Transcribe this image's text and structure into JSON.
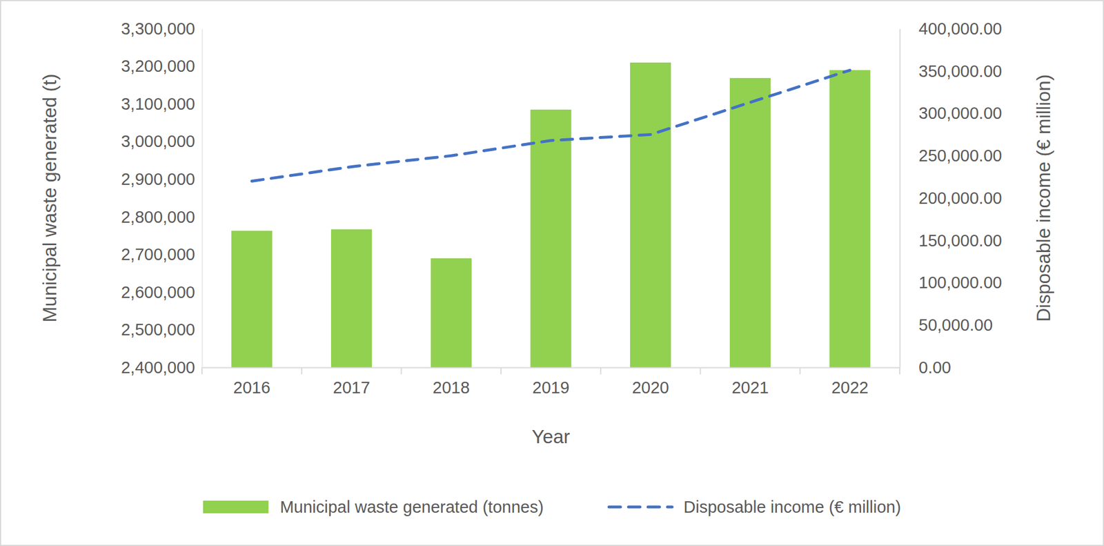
{
  "chart_data": {
    "type": "bar",
    "xlabel": "Year",
    "ylabel": "Municipal waste generated (t)",
    "y2label": "Disposable income (€ million)",
    "categories": [
      "2016",
      "2017",
      "2018",
      "2019",
      "2020",
      "2021",
      "2022"
    ],
    "series": [
      {
        "name": "Municipal waste generated (tonnes)",
        "type": "bar",
        "color": "#92d050",
        "values": [
          2763000,
          2767000,
          2690000,
          3085000,
          3210000,
          3169000,
          3190000
        ]
      },
      {
        "name": "Disposable income (€ million)",
        "type": "line",
        "color": "#4472c4",
        "line_style": "dashed",
        "axis": "y2",
        "values": [
          220000,
          237000,
          250000,
          268000,
          275000,
          313000,
          351000
        ]
      }
    ],
    "ylim": [
      2400000,
      3300000
    ],
    "yticks": [
      {
        "value": 2400000,
        "label": "2,400,000"
      },
      {
        "value": 2500000,
        "label": "2,500,000"
      },
      {
        "value": 2600000,
        "label": "2,600,000"
      },
      {
        "value": 2700000,
        "label": "2,700,000"
      },
      {
        "value": 2800000,
        "label": "2,800,000"
      },
      {
        "value": 2900000,
        "label": "2,900,000"
      },
      {
        "value": 3000000,
        "label": "3,000,000"
      },
      {
        "value": 3100000,
        "label": "3,100,000"
      },
      {
        "value": 3200000,
        "label": "3,200,000"
      },
      {
        "value": 3300000,
        "label": "3,300,000"
      }
    ],
    "y2lim": [
      0,
      400000
    ],
    "y2ticks": [
      {
        "value": 0,
        "label": "0.00"
      },
      {
        "value": 50000,
        "label": "50,000.00"
      },
      {
        "value": 100000,
        "label": "100,000.00"
      },
      {
        "value": 150000,
        "label": "150,000.00"
      },
      {
        "value": 200000,
        "label": "200,000.00"
      },
      {
        "value": 250000,
        "label": "250,000.00"
      },
      {
        "value": 300000,
        "label": "300,000.00"
      },
      {
        "value": 350000,
        "label": "350,000.00"
      },
      {
        "value": 400000,
        "label": "400,000.00"
      }
    ],
    "grid": false,
    "legend": "bottom"
  }
}
